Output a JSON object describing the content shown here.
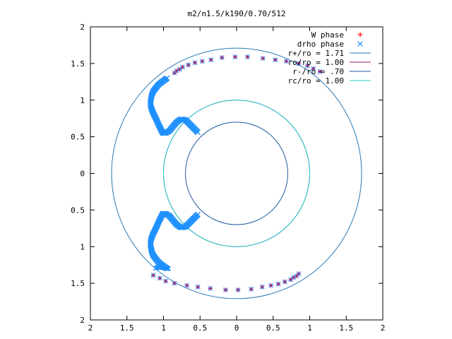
{
  "chart_data": {
    "type": "scatter",
    "title": "m2/n1.5/k190/0.70/512",
    "xlabel": "",
    "ylabel": "",
    "xlim": [
      -2,
      2
    ],
    "ylim": [
      -2,
      2
    ],
    "grid": false,
    "legend_position": "top-right",
    "x_tick_labels": [
      "2",
      "1.5",
      "1",
      "0.5",
      "0",
      "0.5",
      "1",
      "1.5",
      "2"
    ],
    "y_tick_labels": [
      "2",
      "1.5",
      "1",
      "0.5",
      "0",
      "0.5",
      "1",
      "1.5",
      "2"
    ],
    "series": [
      {
        "name": "W phase",
        "kind": "points",
        "marker": "+",
        "color": "#ff0000"
      },
      {
        "name": "drho phase",
        "kind": "points",
        "marker": "x",
        "color": "#1e90ff"
      },
      {
        "name": "r+/ro = 1.71",
        "kind": "circle",
        "radius": 1.71,
        "color": "#2a78b4"
      },
      {
        "name": "ro/ro = 1.00",
        "kind": "circle",
        "radius": 1.0,
        "color": "#8b1a6b"
      },
      {
        "name": "r-/ro = .70",
        "kind": "circle",
        "radius": 0.7,
        "color": "#1f5aa0"
      },
      {
        "name": "rc/ro = 1.00",
        "kind": "circle",
        "radius": 1.0,
        "color": "#20d0d0"
      }
    ],
    "arm_points": [
      [
        0.95,
        1.3
      ],
      [
        1.02,
        1.25
      ],
      [
        1.07,
        1.21
      ],
      [
        1.11,
        1.16
      ],
      [
        1.14,
        1.12
      ],
      [
        1.16,
        1.07
      ],
      [
        1.17,
        1.02
      ],
      [
        1.18,
        0.96
      ],
      [
        1.17,
        0.9
      ],
      [
        1.14,
        0.82
      ],
      [
        1.1,
        0.74
      ],
      [
        1.07,
        0.67
      ],
      [
        1.04,
        0.61
      ],
      [
        1.01,
        0.55
      ],
      [
        0.97,
        0.55
      ],
      [
        0.92,
        0.58
      ],
      [
        0.87,
        0.64
      ],
      [
        0.82,
        0.7
      ],
      [
        0.76,
        0.74
      ],
      [
        0.7,
        0.73
      ],
      [
        0.64,
        0.67
      ],
      [
        0.58,
        0.61
      ],
      [
        0.53,
        0.56
      ],
      [
        -0.93,
        -1.3
      ],
      [
        -1.0,
        -1.29
      ],
      [
        -1.06,
        -1.27
      ],
      [
        -1.11,
        -1.3
      ]
    ],
    "sparse_points": [
      [
        0.85,
        1.37
      ],
      [
        0.82,
        1.4
      ],
      [
        0.78,
        1.42
      ],
      [
        0.74,
        1.45
      ],
      [
        0.66,
        1.48
      ],
      [
        0.57,
        1.51
      ],
      [
        0.47,
        1.53
      ],
      [
        0.35,
        1.55
      ],
      [
        0.2,
        1.58
      ],
      [
        0.02,
        1.59
      ],
      [
        -0.15,
        1.59
      ],
      [
        -0.36,
        1.57
      ],
      [
        -0.53,
        1.55
      ],
      [
        -0.68,
        1.53
      ],
      [
        -0.85,
        1.5
      ],
      [
        -0.97,
        1.47
      ],
      [
        -1.05,
        1.43
      ],
      [
        -1.14,
        1.39
      ]
    ]
  }
}
